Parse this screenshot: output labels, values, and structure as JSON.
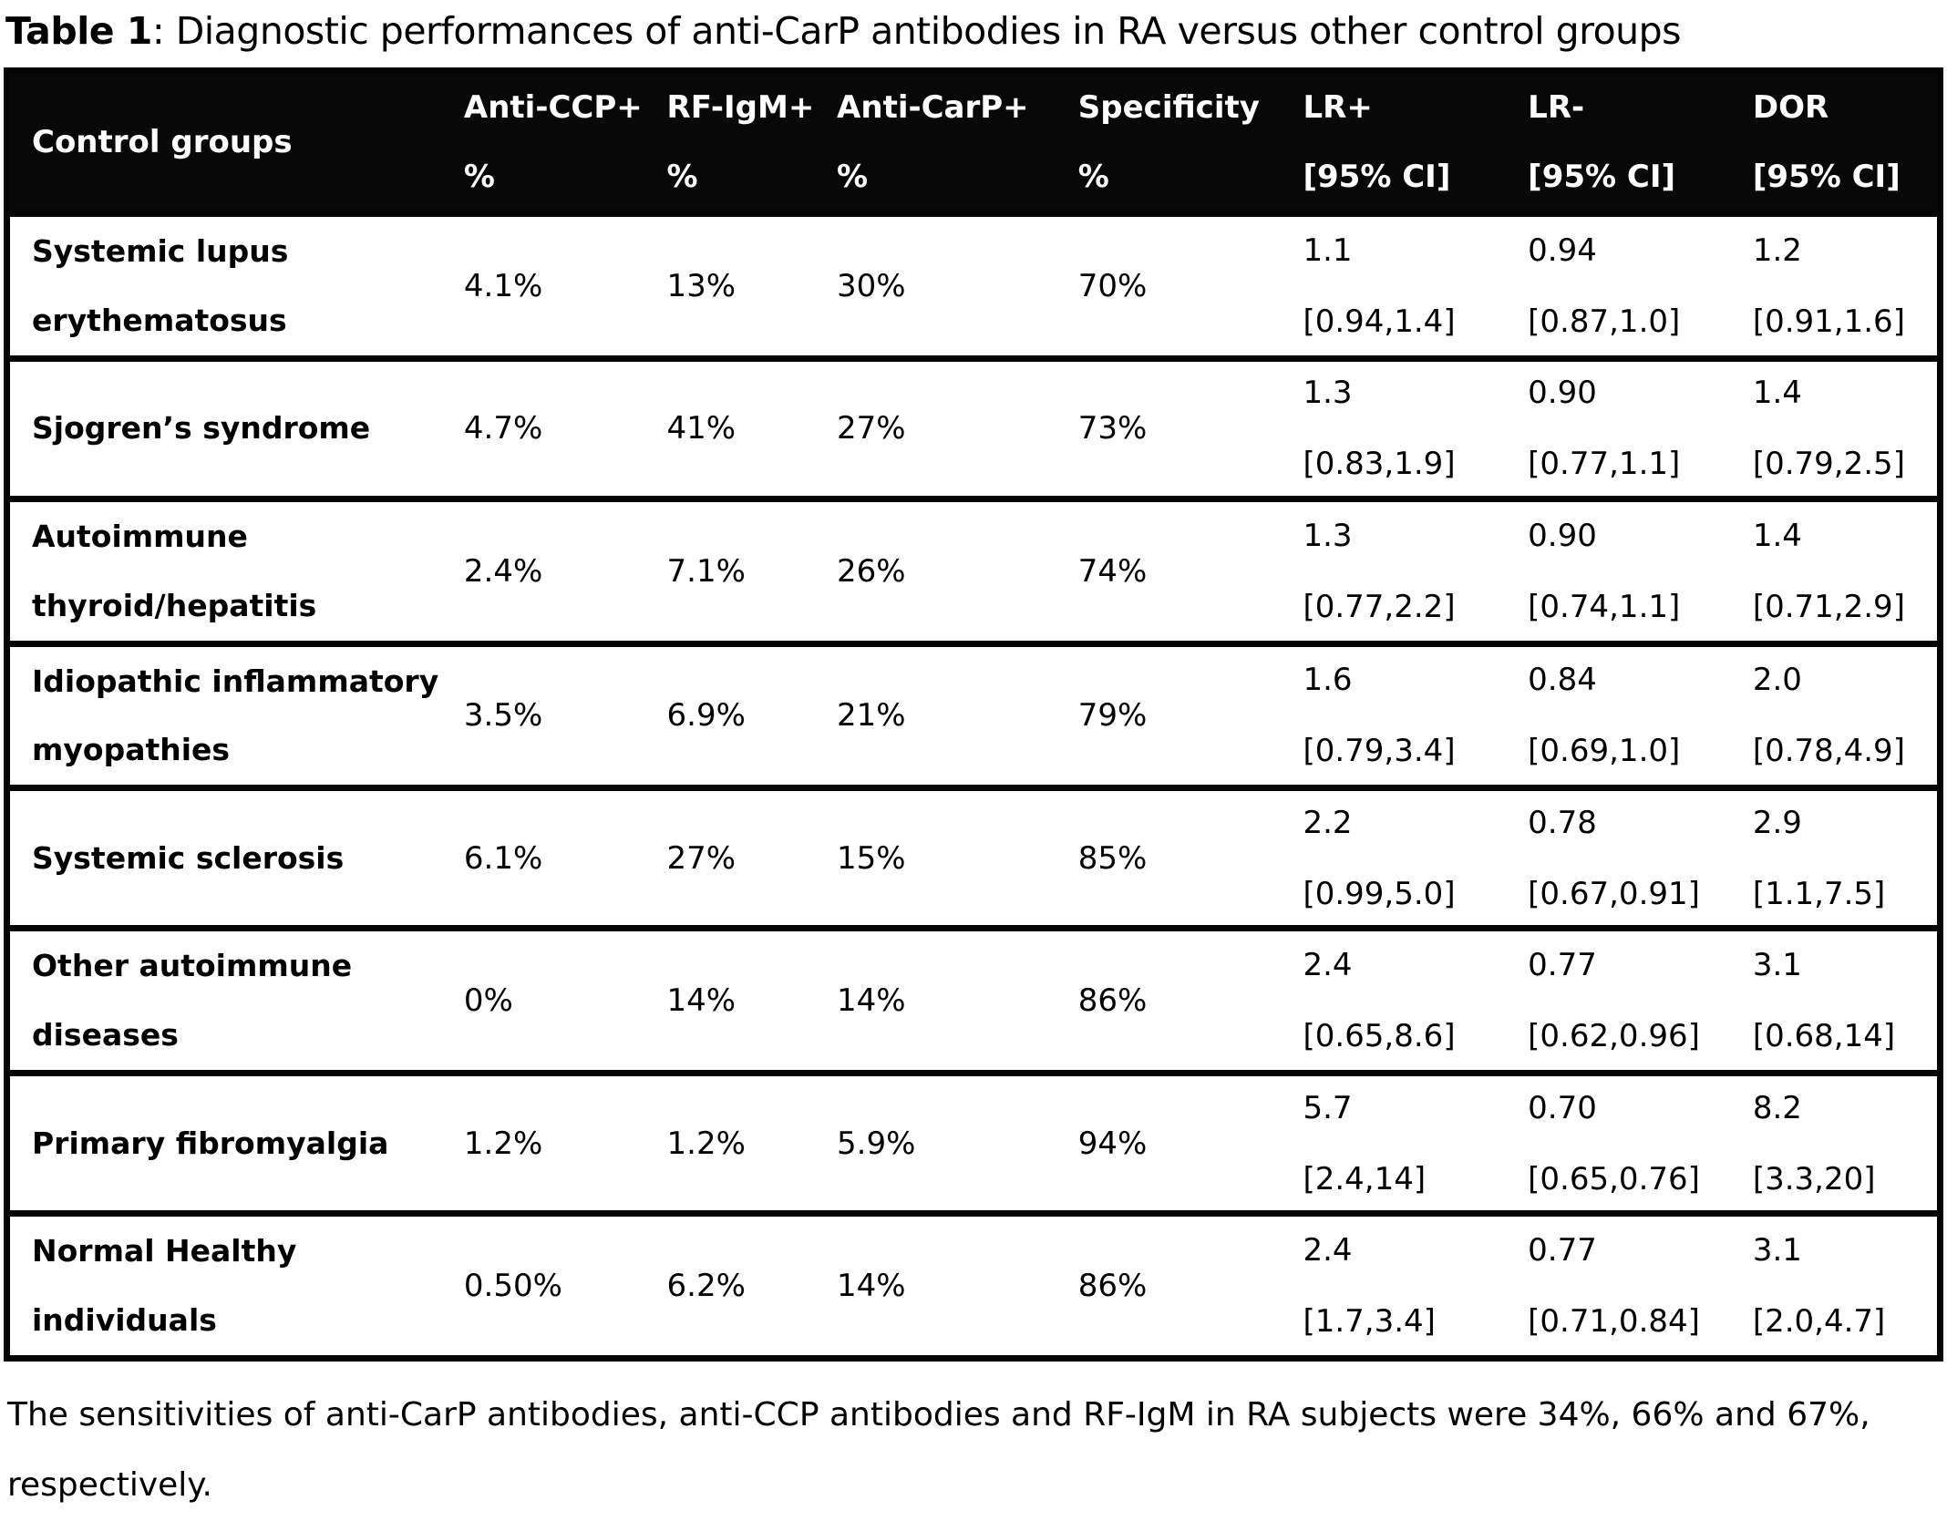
{
  "title": {
    "label": "Table 1",
    "rest": ": Diagnostic performances of anti-CarP antibodies in RA versus other control groups"
  },
  "table": {
    "columns": [
      {
        "line1": "Control groups",
        "line2": ""
      },
      {
        "line1": "Anti-CCP+",
        "line2": "%"
      },
      {
        "line1": "RF-IgM+",
        "line2": "%"
      },
      {
        "line1": "Anti-CarP+",
        "line2": "%"
      },
      {
        "line1": "Specificity",
        "line2": "%"
      },
      {
        "line1": "LR+",
        "line2": "[95% CI]"
      },
      {
        "line1": "LR-",
        "line2": "[95% CI]"
      },
      {
        "line1": "DOR",
        "line2": "[95% CI]"
      }
    ],
    "rows": [
      {
        "group": "Systemic lupus\nerythematosus",
        "anti_ccp": "4.1%",
        "rf_igm": "13%",
        "anti_carp": "30%",
        "specificity": "70%",
        "lr_plus": "1.1",
        "lr_plus_ci": "[0.94,1.4]",
        "lr_minus": "0.94",
        "lr_minus_ci": "[0.87,1.0]",
        "dor": "1.2",
        "dor_ci": "[0.91,1.6]"
      },
      {
        "group": "Sjogren’s syndrome",
        "anti_ccp": "4.7%",
        "rf_igm": "41%",
        "anti_carp": "27%",
        "specificity": "73%",
        "lr_plus": "1.3",
        "lr_plus_ci": "[0.83,1.9]",
        "lr_minus": "0.90",
        "lr_minus_ci": "[0.77,1.1]",
        "dor": "1.4",
        "dor_ci": "[0.79,2.5]"
      },
      {
        "group": "Autoimmune\nthyroid/hepatitis",
        "anti_ccp": "2.4%",
        "rf_igm": "7.1%",
        "anti_carp": "26%",
        "specificity": "74%",
        "lr_plus": "1.3",
        "lr_plus_ci": "[0.77,2.2]",
        "lr_minus": "0.90",
        "lr_minus_ci": "[0.74,1.1]",
        "dor": "1.4",
        "dor_ci": "[0.71,2.9]"
      },
      {
        "group": "Idiopathic inflammatory\nmyopathies",
        "anti_ccp": "3.5%",
        "rf_igm": "6.9%",
        "anti_carp": "21%",
        "specificity": "79%",
        "lr_plus": "1.6",
        "lr_plus_ci": "[0.79,3.4]",
        "lr_minus": "0.84",
        "lr_minus_ci": "[0.69,1.0]",
        "dor": "2.0",
        "dor_ci": "[0.78,4.9]"
      },
      {
        "group": "Systemic sclerosis",
        "anti_ccp": "6.1%",
        "rf_igm": "27%",
        "anti_carp": "15%",
        "specificity": "85%",
        "lr_plus": "2.2",
        "lr_plus_ci": "[0.99,5.0]",
        "lr_minus": "0.78",
        "lr_minus_ci": "[0.67,0.91]",
        "dor": "2.9",
        "dor_ci": "[1.1,7.5]"
      },
      {
        "group": "Other autoimmune\ndiseases",
        "anti_ccp": "0%",
        "rf_igm": "14%",
        "anti_carp": "14%",
        "specificity": "86%",
        "lr_plus": "2.4",
        "lr_plus_ci": "[0.65,8.6]",
        "lr_minus": "0.77",
        "lr_minus_ci": "[0.62,0.96]",
        "dor": "3.1",
        "dor_ci": "[0.68,14]"
      },
      {
        "group": "Primary fibromyalgia",
        "anti_ccp": "1.2%",
        "rf_igm": "1.2%",
        "anti_carp": "5.9%",
        "specificity": "94%",
        "lr_plus": "5.7",
        "lr_plus_ci": "[2.4,14]",
        "lr_minus": "0.70",
        "lr_minus_ci": "[0.65,0.76]",
        "dor": "8.2",
        "dor_ci": "[3.3,20]"
      },
      {
        "group": "Normal Healthy\nindividuals",
        "anti_ccp": "0.50%",
        "rf_igm": "6.2%",
        "anti_carp": "14%",
        "specificity": "86%",
        "lr_plus": "2.4",
        "lr_plus_ci": "[1.7,3.4]",
        "lr_minus": "0.77",
        "lr_minus_ci": "[0.71,0.84]",
        "dor": "3.1",
        "dor_ci": "[2.0,4.7]"
      }
    ]
  },
  "footnote": "The sensitivities of anti-CarP antibodies, anti-CCP antibodies and RF-IgM in RA subjects were 34%, 66% and 67%, respectively."
}
